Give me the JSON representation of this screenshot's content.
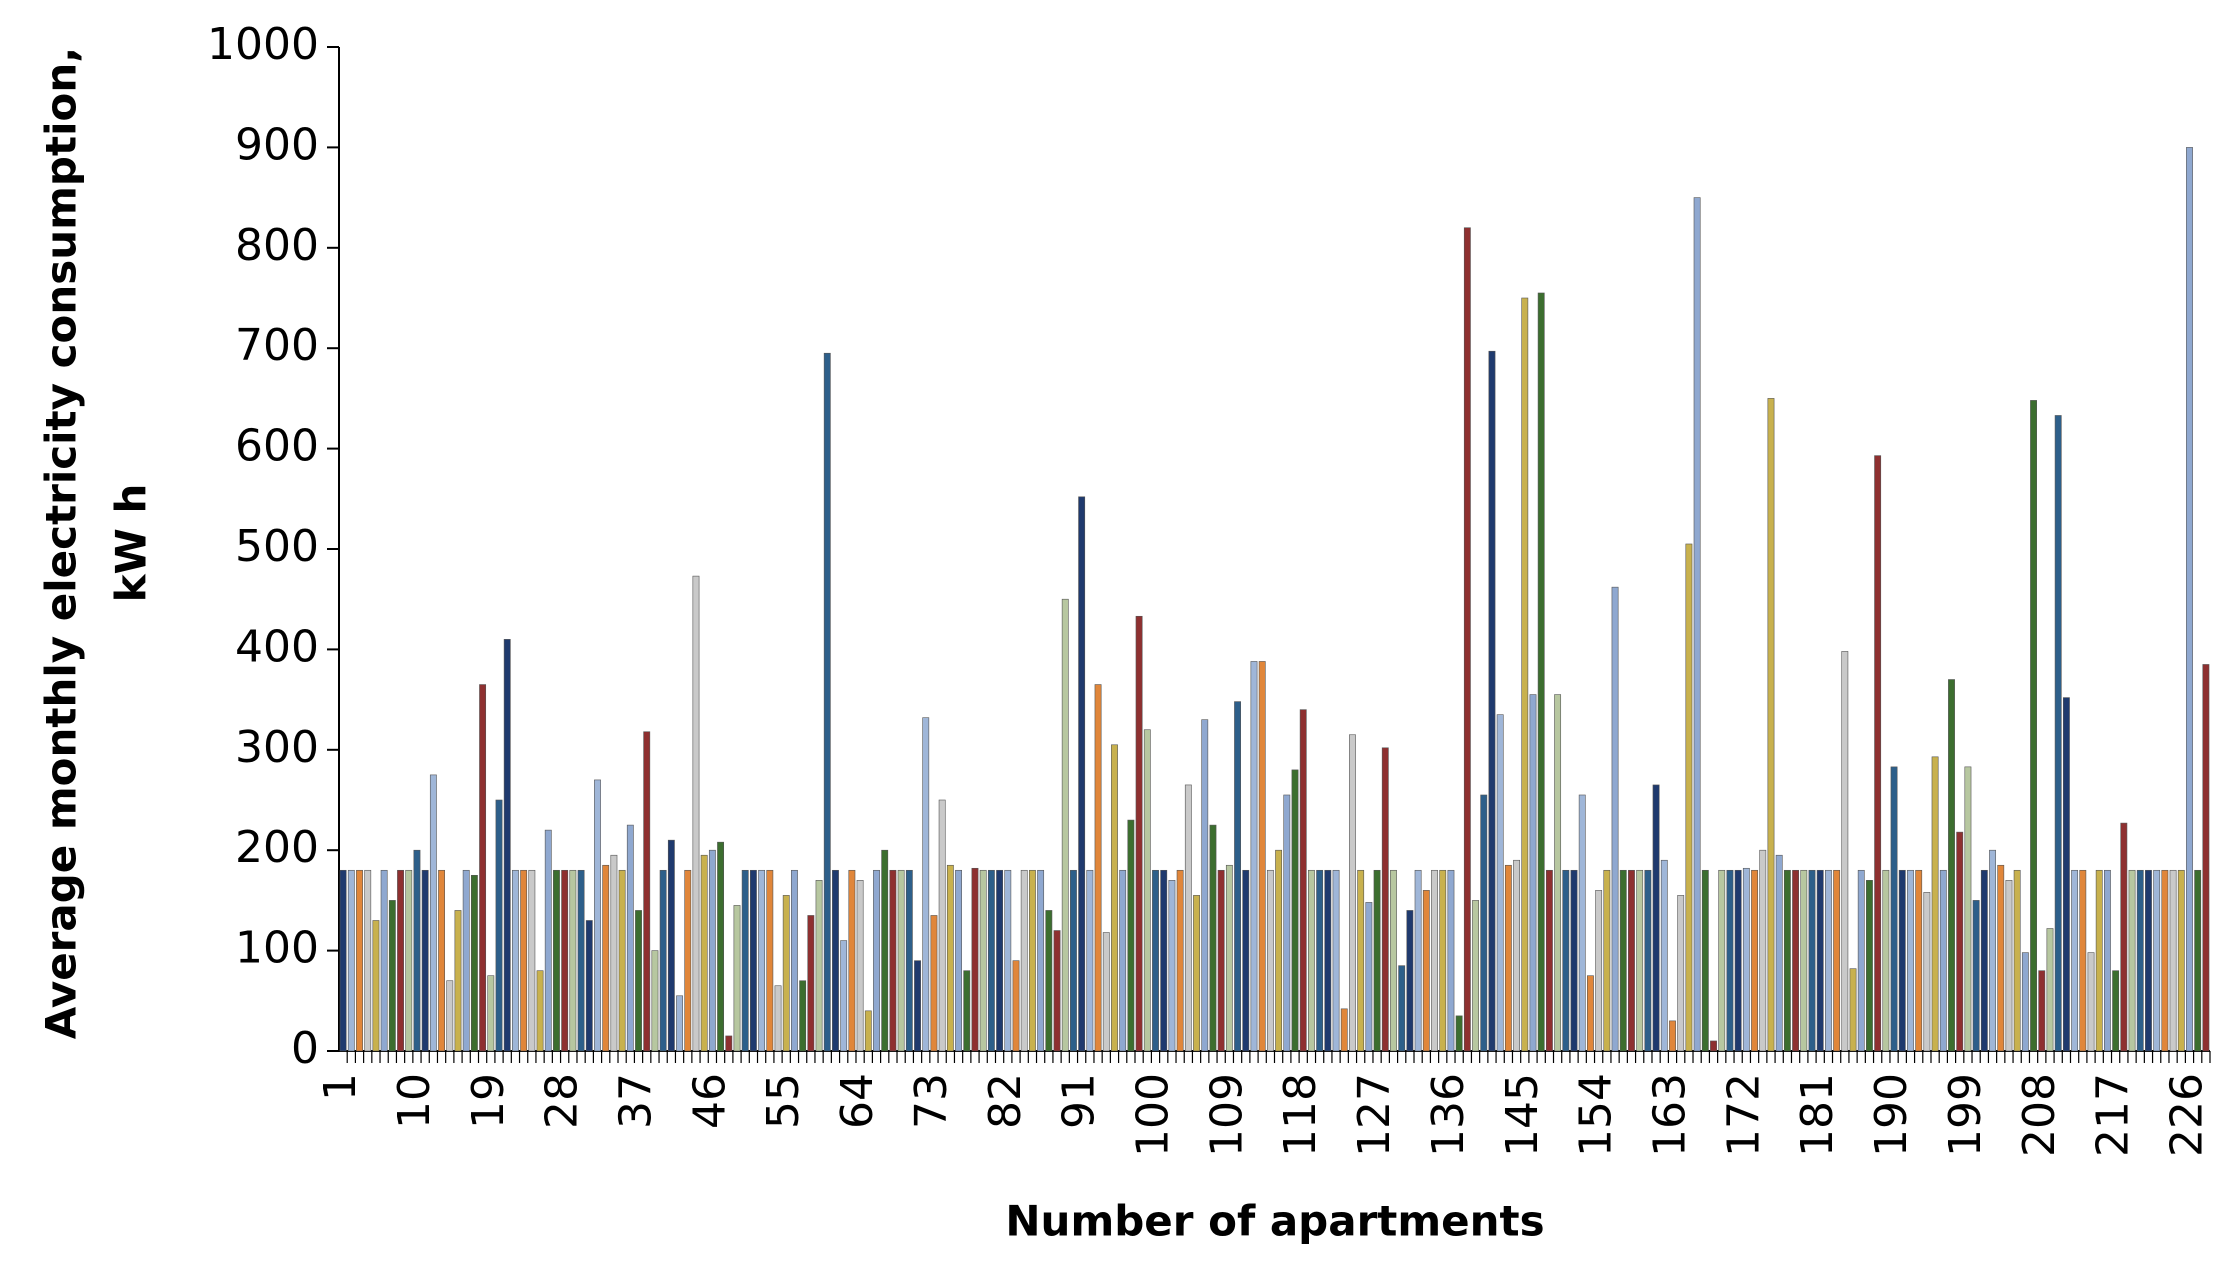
{
  "chart_data": {
    "type": "bar",
    "ylabel": [
      "Average monthly electricity consumption,",
      "kW h"
    ],
    "xlabel": "Number of apartments",
    "categories": [
      1,
      null,
      null,
      null,
      null,
      null,
      null,
      null,
      null,
      10,
      null,
      null,
      null,
      null,
      null,
      null,
      null,
      null,
      19,
      null,
      null,
      null,
      null,
      null,
      null,
      null,
      null,
      28,
      null,
      null,
      null,
      null,
      null,
      null,
      null,
      null,
      37,
      null,
      null,
      null,
      null,
      null,
      null,
      null,
      null,
      46,
      null,
      null,
      null,
      null,
      null,
      null,
      null,
      null,
      55,
      null,
      null,
      null,
      null,
      null,
      null,
      null,
      null,
      64,
      null,
      null,
      null,
      null,
      null,
      null,
      null,
      null,
      73,
      null,
      null,
      null,
      null,
      null,
      null,
      null,
      null,
      82,
      null,
      null,
      null,
      null,
      null,
      null,
      null,
      null,
      91,
      null,
      null,
      null,
      null,
      null,
      null,
      null,
      null,
      100,
      null,
      null,
      null,
      null,
      null,
      null,
      null,
      null,
      109,
      null,
      null,
      null,
      null,
      null,
      null,
      null,
      null,
      118,
      null,
      null,
      null,
      null,
      null,
      null,
      null,
      null,
      127,
      null,
      null,
      null,
      null,
      null,
      null,
      null,
      null,
      136,
      null,
      null,
      null,
      null,
      null,
      null,
      null,
      null,
      145,
      null,
      null,
      null,
      null,
      null,
      null,
      null,
      null,
      154,
      null,
      null,
      null,
      null,
      null,
      null,
      null,
      null,
      163,
      null,
      null,
      null,
      null,
      null,
      null,
      null,
      null,
      172,
      null,
      null,
      null,
      null,
      null,
      null,
      null,
      null,
      181,
      null,
      null,
      null,
      null,
      null,
      null,
      null,
      null,
      190,
      null,
      null,
      null,
      null,
      null,
      null,
      null,
      null,
      199,
      null,
      null,
      null,
      null,
      null,
      null,
      null,
      null,
      208,
      null,
      null,
      null,
      null,
      null,
      null,
      null,
      null,
      217,
      null,
      null,
      null,
      null,
      null,
      null,
      null,
      null,
      226,
      null,
      null
    ],
    "values": [
      180,
      180,
      180,
      180,
      130,
      180,
      150,
      180,
      180,
      200,
      180,
      275,
      180,
      70,
      140,
      180,
      175,
      365,
      75,
      250,
      410,
      180,
      180,
      180,
      80,
      220,
      180,
      180,
      180,
      180,
      130,
      270,
      185,
      195,
      180,
      225,
      140,
      318,
      100,
      180,
      210,
      55,
      180,
      473,
      195,
      200,
      208,
      15,
      145,
      180,
      180,
      180,
      180,
      65,
      155,
      180,
      70,
      135,
      170,
      695,
      180,
      110,
      180,
      170,
      40,
      180,
      200,
      180,
      180,
      180,
      90,
      332,
      135,
      250,
      185,
      180,
      80,
      182,
      180,
      180,
      180,
      180,
      90,
      180,
      180,
      180,
      140,
      120,
      450,
      180,
      552,
      180,
      365,
      118,
      305,
      180,
      230,
      433,
      320,
      180,
      180,
      170,
      180,
      265,
      155,
      330,
      225,
      180,
      185,
      348,
      180,
      388,
      388,
      180,
      200,
      255,
      280,
      340,
      180,
      180,
      180,
      180,
      42,
      315,
      180,
      148,
      180,
      302,
      180,
      85,
      140,
      180,
      160,
      180,
      180,
      180,
      35,
      820,
      150,
      255,
      697,
      335,
      185,
      190,
      750,
      355,
      755,
      180,
      355,
      180,
      180,
      255,
      75,
      160,
      180,
      462,
      180,
      180,
      180,
      180,
      265,
      190,
      30,
      155,
      505,
      850,
      180,
      10,
      180,
      180,
      180,
      182,
      180,
      200,
      650,
      195,
      180,
      180,
      180,
      180,
      180,
      180,
      180,
      398,
      82,
      180,
      170,
      593,
      180,
      283,
      180,
      180,
      180,
      158,
      293,
      180,
      370,
      218,
      283,
      150,
      180,
      200,
      185,
      170,
      180,
      98,
      648,
      80,
      122,
      633,
      352,
      180,
      180,
      98,
      180,
      180,
      80,
      227,
      180,
      180,
      180,
      180,
      180,
      180,
      180,
      900,
      180,
      385
    ],
    "colors": [
      "#1f3a6e",
      "#9fb6d8",
      "#e0863a",
      "#c9c9c9",
      "#c8b14e",
      "#8fa8d0",
      "#3c6e2f",
      "#8e3030",
      "#b7c7a0",
      "#2d5f8a"
    ],
    "ylim": [
      0,
      1000
    ],
    "yticks": [
      0,
      100,
      200,
      300,
      400,
      500,
      600,
      700,
      800,
      900,
      1000
    ],
    "grid": false
  }
}
